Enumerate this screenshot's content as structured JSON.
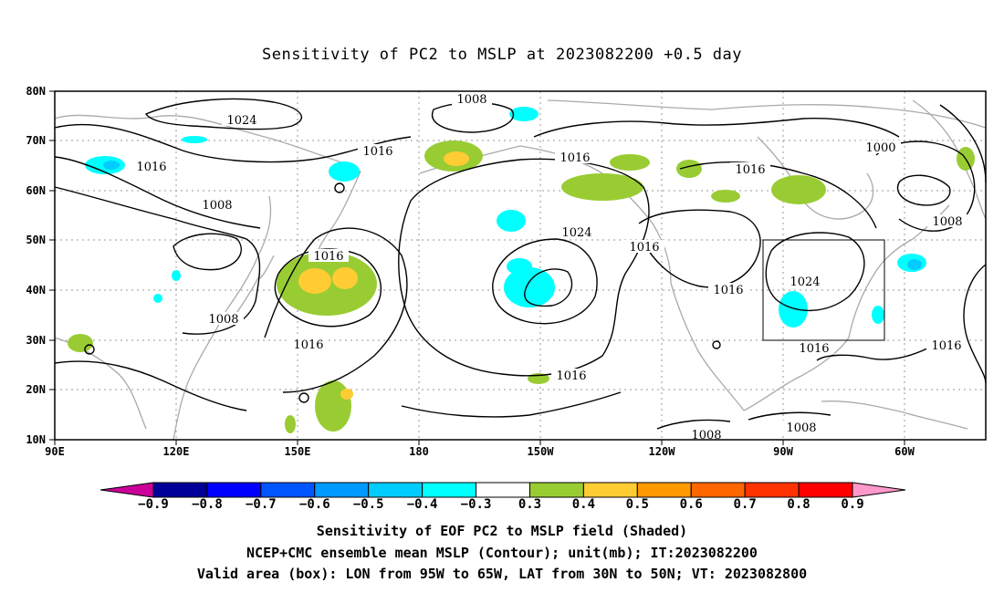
{
  "title": "Sensitivity of PC2 to MSLP at 2023082200 +0.5 day",
  "map": {
    "lat_labels": [
      "80N",
      "70N",
      "60N",
      "50N",
      "40N",
      "30N",
      "20N",
      "10N"
    ],
    "lon_labels": [
      "90E",
      "120E",
      "150E",
      "180",
      "150W",
      "120W",
      "90W",
      "60W"
    ],
    "contour_labels": [
      "1008",
      "1024",
      "1016",
      "1016",
      "1008",
      "1016",
      "1016",
      "1024",
      "1016",
      "1016",
      "1016",
      "1000",
      "1016",
      "1024",
      "1008",
      "1008",
      "1016",
      "1016",
      "1016",
      "1008",
      "1008"
    ],
    "box_label": "Valid area box 95W-65W, 30N-50N"
  },
  "colorbar": {
    "labels": [
      "-0.9",
      "-0.8",
      "-0.7",
      "-0.6",
      "-0.5",
      "-0.4",
      "-0.3",
      "0.3",
      "0.4",
      "0.5",
      "0.6",
      "0.7",
      "0.8",
      "0.9"
    ],
    "colors": [
      "#000099",
      "#0000ff",
      "#0055ff",
      "#0099ff",
      "#00ccff",
      "#00ffff",
      "#ffffff",
      "#99cc33",
      "#ffcc33",
      "#ff9900",
      "#ff6600",
      "#ff3300",
      "#ff0000"
    ],
    "low_arrow_color": "#cc0099",
    "high_arrow_color": "#ff99cc"
  },
  "captions": {
    "line1": "Sensitivity of EOF PC2 to MSLP field (Shaded)",
    "line2": "NCEP+CMC ensemble mean MSLP (Contour); unit(mb); IT:2023082200",
    "line3": "Valid area (box): LON from 95W to 65W, LAT from 30N to 50N; VT: 2023082800"
  }
}
